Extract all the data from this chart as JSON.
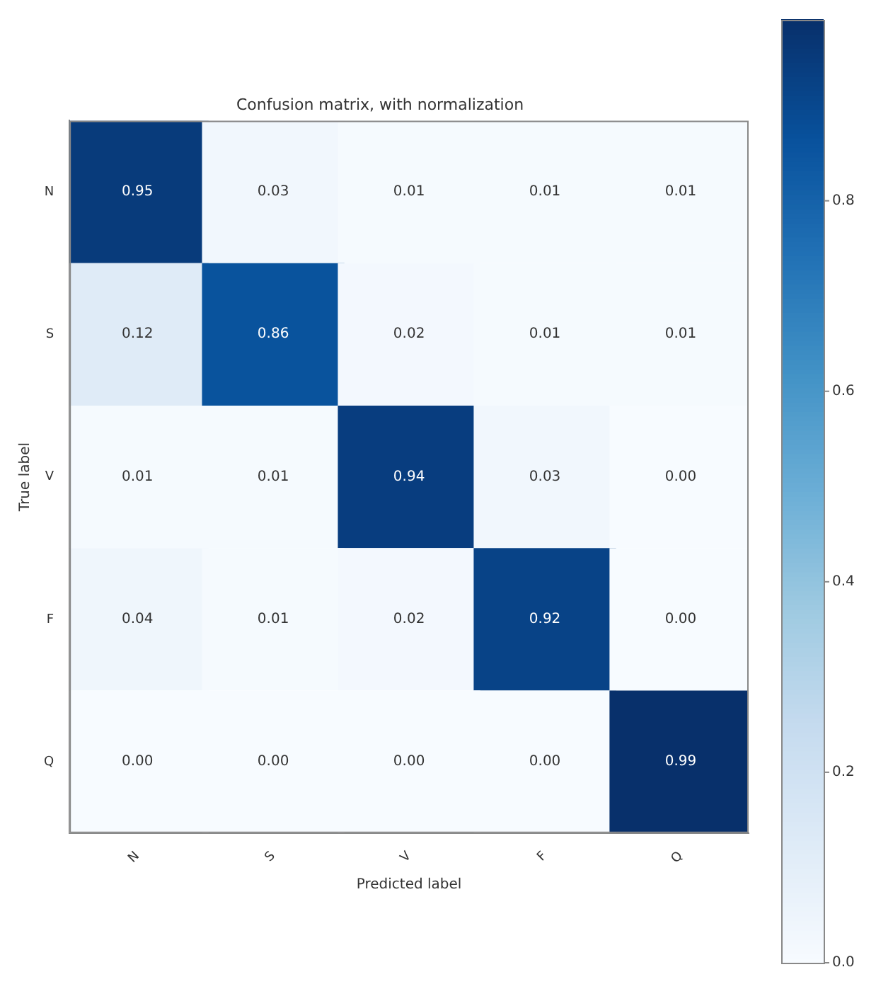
{
  "chart_data": {
    "type": "heatmap",
    "title": "Confusion matrix, with normalization",
    "xlabel": "Predicted label",
    "ylabel": "True label",
    "categories": [
      "N",
      "S",
      "V",
      "F",
      "Q"
    ],
    "y_categories": [
      "N",
      "S",
      "V",
      "F",
      "Q"
    ],
    "cells": [
      [
        0.95,
        0.03,
        0.01,
        0.01,
        0.01
      ],
      [
        0.12,
        0.86,
        0.02,
        0.01,
        0.01
      ],
      [
        0.01,
        0.01,
        0.94,
        0.03,
        0.0
      ],
      [
        0.04,
        0.01,
        0.02,
        0.92,
        0.0
      ],
      [
        0.0,
        0.0,
        0.0,
        0.0,
        0.99
      ]
    ],
    "cell_labels": [
      [
        "0.95",
        "0.03",
        "0.01",
        "0.01",
        "0.01"
      ],
      [
        "0.12",
        "0.86",
        "0.02",
        "0.01",
        "0.01"
      ],
      [
        "0.01",
        "0.01",
        "0.94",
        "0.03",
        "0.00"
      ],
      [
        "0.04",
        "0.01",
        "0.02",
        "0.92",
        "0.00"
      ],
      [
        "0.00",
        "0.00",
        "0.00",
        "0.00",
        "0.99"
      ]
    ],
    "clim": [
      0,
      0.99
    ],
    "cticks": [
      {
        "value": 0,
        "label": "0.0"
      },
      0.2,
      0.4,
      0.6,
      0.8
    ],
    "data_labels": true
  }
}
